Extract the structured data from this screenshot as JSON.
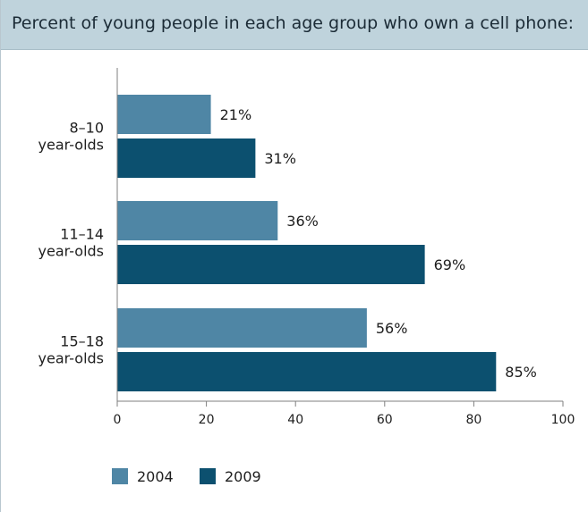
{
  "chart_data": {
    "type": "bar",
    "orientation": "horizontal",
    "title": "Percent of young people in each age group who own a cell phone:",
    "categories": [
      [
        "8–10",
        "year-olds"
      ],
      [
        "11–14",
        "year-olds"
      ],
      [
        "15–18",
        "year-olds"
      ]
    ],
    "series": [
      {
        "name": "2004",
        "values": [
          21,
          36,
          56
        ],
        "labels": [
          "21%",
          "36%",
          "56%"
        ],
        "color": "#4f86a5"
      },
      {
        "name": "2009",
        "values": [
          31,
          69,
          85
        ],
        "labels": [
          "31%",
          "69%",
          "85%"
        ],
        "color": "#0c506f"
      }
    ],
    "xlim": [
      0,
      100
    ],
    "xticks": [
      "0",
      "20",
      "40",
      "60",
      "80",
      "100"
    ],
    "grid": false,
    "legend_position": "bottom-left",
    "colors": {
      "title_background": "#bfd3dc",
      "axis": "#7f7f7f"
    }
  }
}
